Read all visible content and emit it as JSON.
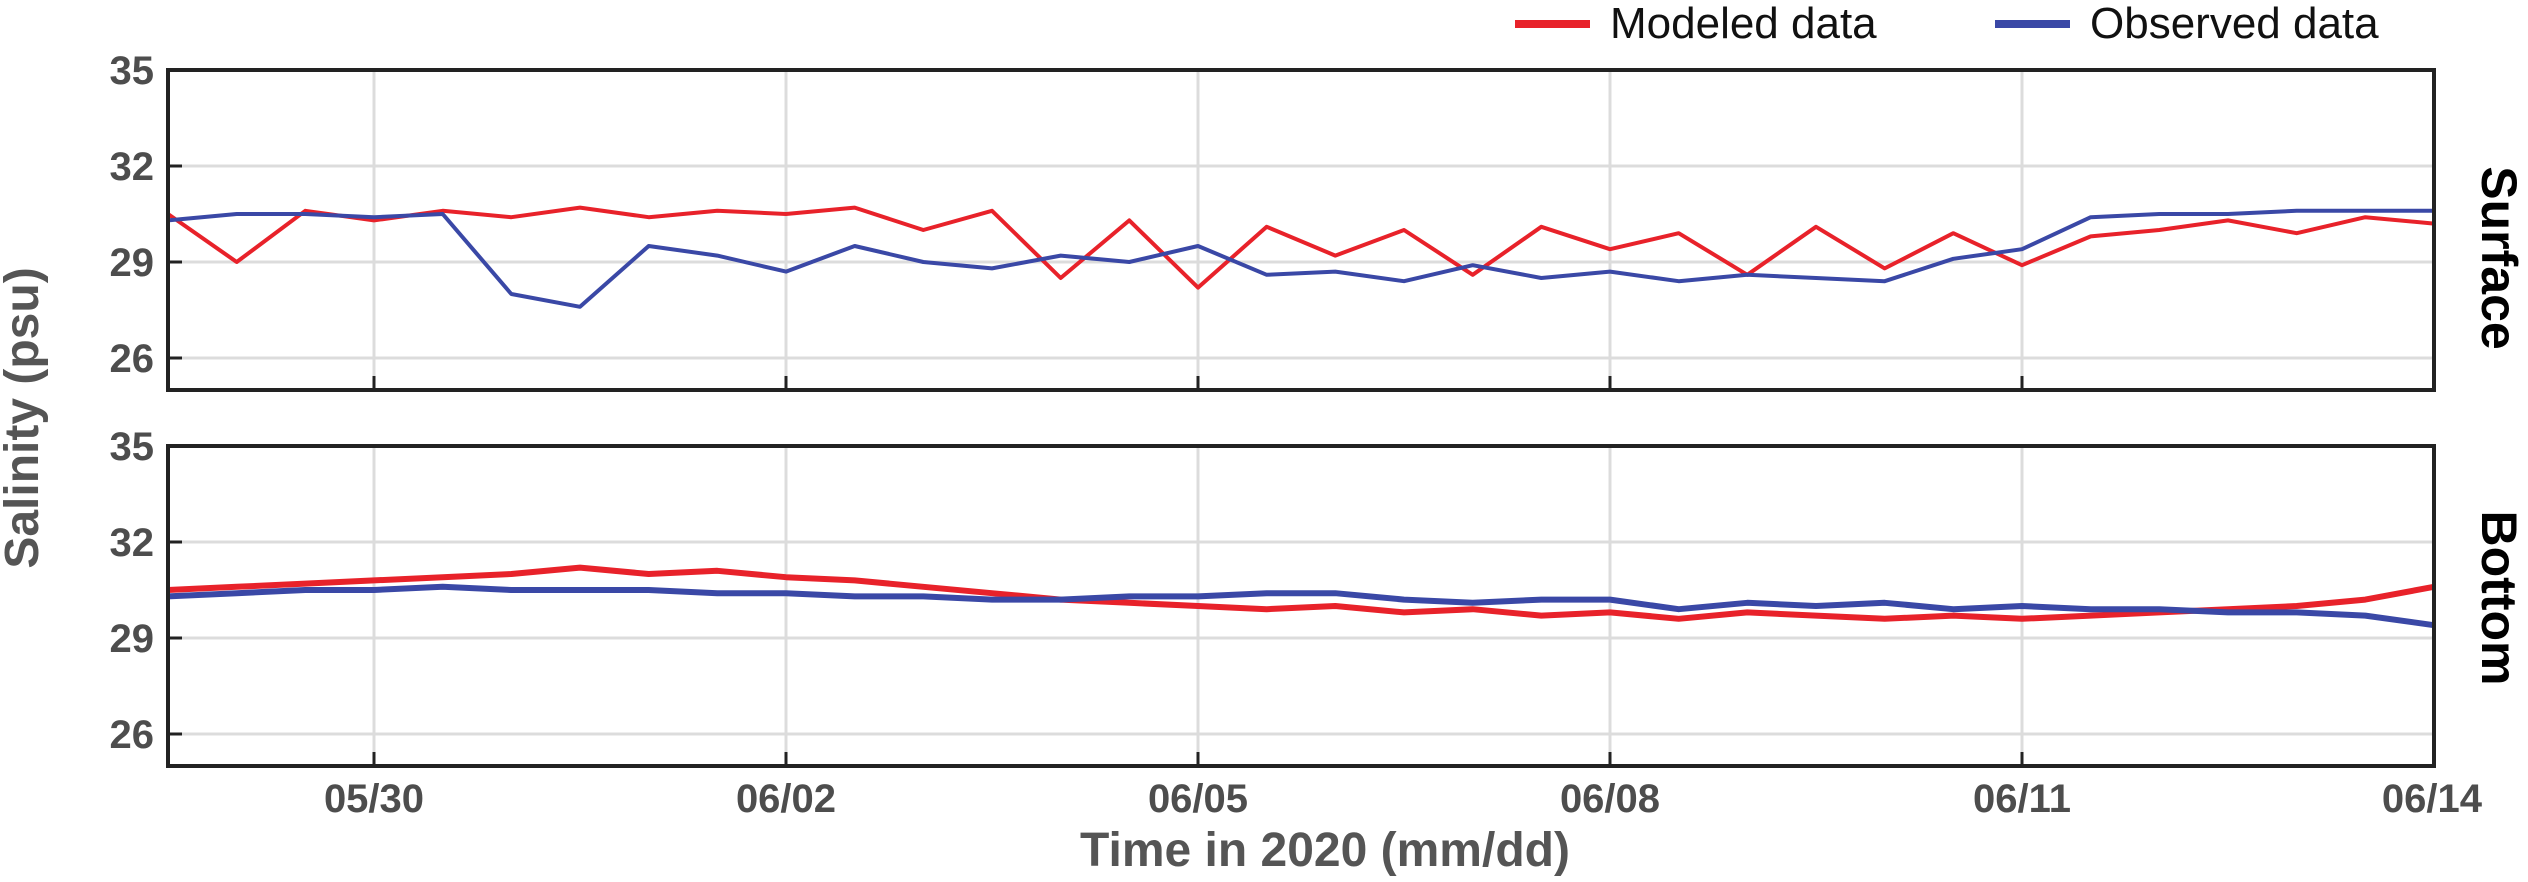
{
  "chart_data": {
    "type": "line",
    "xlabel": "Time in 2020 (mm/dd)",
    "ylabel": "Salinity (psu)",
    "x_range": [
      "2020-05-28T12:00",
      "2020-06-14T00:00"
    ],
    "x_ticks": [
      {
        "date": "2020-05-30",
        "label": "05/30"
      },
      {
        "date": "2020-06-02",
        "label": "06/02"
      },
      {
        "date": "2020-06-05",
        "label": "06/05"
      },
      {
        "date": "2020-06-08",
        "label": "06/08"
      },
      {
        "date": "2020-06-11",
        "label": "06/11"
      },
      {
        "date": "2020-06-14",
        "label": "06/14"
      }
    ],
    "legend": {
      "position": "top-right",
      "entries": [
        {
          "name": "Modeled data",
          "color": "#e8222a"
        },
        {
          "name": "Observed data",
          "color": "#3a48a6"
        }
      ]
    },
    "grid": true,
    "panels": [
      {
        "name": "Surface",
        "ylim": [
          25,
          35
        ],
        "yticks": [
          26,
          29,
          32,
          35
        ],
        "series": [
          {
            "name": "Modeled data",
            "color": "#e8222a",
            "x": [
              "05/28 12:00",
              "05/29 00:00",
              "05/29 12:00",
              "05/30 00:00",
              "05/30 12:00",
              "05/31 00:00",
              "05/31 12:00",
              "06/01 00:00",
              "06/01 12:00",
              "06/02 00:00",
              "06/02 12:00",
              "06/03 00:00",
              "06/03 12:00",
              "06/04 00:00",
              "06/04 12:00",
              "06/05 00:00",
              "06/05 12:00",
              "06/06 00:00",
              "06/06 12:00",
              "06/07 00:00",
              "06/07 12:00",
              "06/08 00:00",
              "06/08 12:00",
              "06/09 00:00",
              "06/09 12:00",
              "06/10 00:00",
              "06/10 12:00",
              "06/11 00:00",
              "06/11 12:00",
              "06/12 00:00",
              "06/12 12:00",
              "06/13 00:00",
              "06/13 12:00",
              "06/14 00:00"
            ],
            "values": [
              30.5,
              29.0,
              30.6,
              30.3,
              30.6,
              30.4,
              30.7,
              30.4,
              30.6,
              30.5,
              30.7,
              30.0,
              30.6,
              28.5,
              30.3,
              28.2,
              30.1,
              29.2,
              30.0,
              28.6,
              30.1,
              29.4,
              29.9,
              28.6,
              30.1,
              28.8,
              29.9,
              28.9,
              29.8,
              30.0,
              30.3,
              29.9,
              30.4,
              30.2
            ]
          },
          {
            "name": "Observed data",
            "color": "#3a48a6",
            "x": [
              "05/28 12:00",
              "05/29 00:00",
              "05/29 12:00",
              "05/30 00:00",
              "05/30 12:00",
              "05/31 00:00",
              "05/31 12:00",
              "06/01 00:00",
              "06/01 12:00",
              "06/02 00:00",
              "06/02 12:00",
              "06/03 00:00",
              "06/03 12:00",
              "06/04 00:00",
              "06/04 12:00",
              "06/05 00:00",
              "06/05 12:00",
              "06/06 00:00",
              "06/06 12:00",
              "06/07 00:00",
              "06/07 12:00",
              "06/08 00:00",
              "06/08 12:00",
              "06/09 00:00",
              "06/09 12:00",
              "06/10 00:00",
              "06/10 12:00",
              "06/11 00:00",
              "06/11 12:00",
              "06/12 00:00",
              "06/12 12:00",
              "06/13 00:00",
              "06/13 12:00",
              "06/14 00:00"
            ],
            "values": [
              30.3,
              30.5,
              30.5,
              30.4,
              30.5,
              28.0,
              27.6,
              29.5,
              29.2,
              28.7,
              29.5,
              29.0,
              28.8,
              29.2,
              29.0,
              29.5,
              28.6,
              28.7,
              28.4,
              28.9,
              28.5,
              28.7,
              28.4,
              28.6,
              28.5,
              28.4,
              29.1,
              29.4,
              30.4,
              30.5,
              30.5,
              30.6,
              30.6,
              30.6
            ]
          }
        ]
      },
      {
        "name": "Bottom",
        "ylim": [
          25,
          35
        ],
        "yticks": [
          26,
          29,
          32,
          35
        ],
        "series": [
          {
            "name": "Modeled data",
            "color": "#e8222a",
            "x": [
              "05/28 12:00",
              "05/29 00:00",
              "05/29 12:00",
              "05/30 00:00",
              "05/30 12:00",
              "05/31 00:00",
              "05/31 12:00",
              "06/01 00:00",
              "06/01 12:00",
              "06/02 00:00",
              "06/02 12:00",
              "06/03 00:00",
              "06/03 12:00",
              "06/04 00:00",
              "06/04 12:00",
              "06/05 00:00",
              "06/05 12:00",
              "06/06 00:00",
              "06/06 12:00",
              "06/07 00:00",
              "06/07 12:00",
              "06/08 00:00",
              "06/08 12:00",
              "06/09 00:00",
              "06/09 12:00",
              "06/10 00:00",
              "06/10 12:00",
              "06/11 00:00",
              "06/11 12:00",
              "06/12 00:00",
              "06/12 12:00",
              "06/13 00:00",
              "06/13 12:00",
              "06/14 00:00"
            ],
            "values": [
              30.5,
              30.6,
              30.7,
              30.8,
              30.9,
              31.0,
              31.2,
              31.0,
              31.1,
              30.9,
              30.8,
              30.6,
              30.4,
              30.2,
              30.1,
              30.0,
              29.9,
              30.0,
              29.8,
              29.9,
              29.7,
              29.8,
              29.6,
              29.8,
              29.7,
              29.6,
              29.7,
              29.6,
              29.7,
              29.8,
              29.9,
              30.0,
              30.2,
              30.6
            ]
          },
          {
            "name": "Observed data",
            "color": "#3a48a6",
            "x": [
              "05/28 12:00",
              "05/29 00:00",
              "05/29 12:00",
              "05/30 00:00",
              "05/30 12:00",
              "05/31 00:00",
              "05/31 12:00",
              "06/01 00:00",
              "06/01 12:00",
              "06/02 00:00",
              "06/02 12:00",
              "06/03 00:00",
              "06/03 12:00",
              "06/04 00:00",
              "06/04 12:00",
              "06/05 00:00",
              "06/05 12:00",
              "06/06 00:00",
              "06/06 12:00",
              "06/07 00:00",
              "06/07 12:00",
              "06/08 00:00",
              "06/08 12:00",
              "06/09 00:00",
              "06/09 12:00",
              "06/10 00:00",
              "06/10 12:00",
              "06/11 00:00",
              "06/11 12:00",
              "06/12 00:00",
              "06/12 12:00",
              "06/13 00:00",
              "06/13 12:00",
              "06/14 00:00"
            ],
            "values": [
              30.3,
              30.4,
              30.5,
              30.5,
              30.6,
              30.5,
              30.5,
              30.5,
              30.4,
              30.4,
              30.3,
              30.3,
              30.2,
              30.2,
              30.3,
              30.3,
              30.4,
              30.4,
              30.2,
              30.1,
              30.2,
              30.2,
              29.9,
              30.1,
              30.0,
              30.1,
              29.9,
              30.0,
              29.9,
              29.9,
              29.8,
              29.8,
              29.7,
              29.4
            ]
          }
        ]
      }
    ]
  }
}
